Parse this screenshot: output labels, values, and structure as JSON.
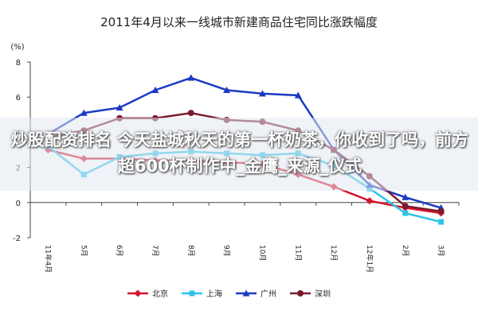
{
  "chart_data": {
    "type": "line",
    "title": "2011年4月以来一线城市新建商品住宅同比涨跌幅度",
    "y_label": "(%)",
    "categories": [
      "11年4月",
      "5月",
      "6月",
      "7月",
      "8月",
      "9月",
      "10月",
      "11月",
      "12月",
      "12年1月",
      "2月",
      "3月"
    ],
    "series": [
      {
        "name": "北京",
        "color": "#d9142b",
        "marker": "diamond",
        "values": [
          3.0,
          2.5,
          2.5,
          2.4,
          2.4,
          2.3,
          2.2,
          1.6,
          0.9,
          0.1,
          -0.3,
          -0.6
        ]
      },
      {
        "name": "上海",
        "color": "#2fc3e8",
        "marker": "square",
        "values": [
          3.2,
          1.6,
          2.6,
          2.8,
          2.9,
          2.8,
          2.7,
          2.8,
          2.1,
          0.8,
          -0.6,
          -1.1
        ]
      },
      {
        "name": "广州",
        "color": "#1a3bc2",
        "marker": "triangle",
        "values": [
          3.9,
          5.1,
          5.4,
          6.4,
          7.1,
          6.4,
          6.2,
          6.1,
          3.0,
          1.0,
          0.3,
          -0.3
        ]
      },
      {
        "name": "深圳",
        "color": "#7a1b2d",
        "marker": "circle",
        "values": [
          3.7,
          4.1,
          4.8,
          4.8,
          5.1,
          4.7,
          4.6,
          4.1,
          3.0,
          1.5,
          -0.2,
          -0.5
        ]
      }
    ],
    "ylim": [
      -2,
      8
    ],
    "yticks": [
      -2,
      0,
      2,
      4,
      6,
      8
    ],
    "grid": false,
    "legend": "bottom"
  },
  "overlay": {
    "text": "炒股配资排名 今天盐城秋天的第一杯奶茶，你收到了吗，前方超600杯制作中_金鹰_来源_仪式"
  }
}
